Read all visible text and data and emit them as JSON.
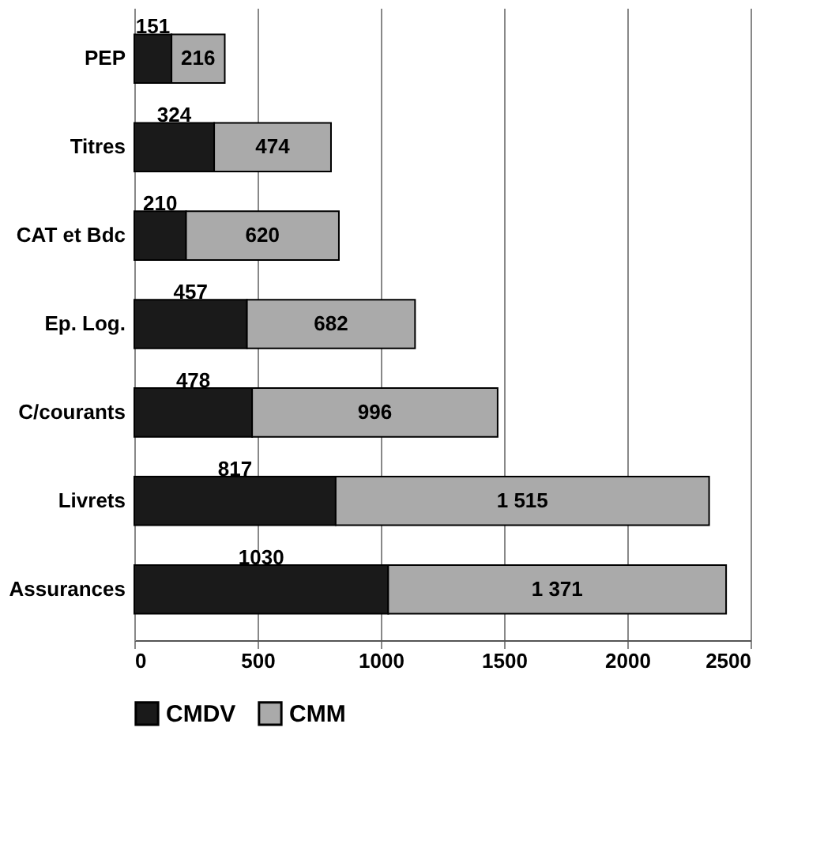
{
  "chart_data": {
    "type": "bar",
    "orientation": "horizontal",
    "stacked": true,
    "categories": [
      "PEP",
      "Titres",
      "CAT et Bdc",
      "Ep. Log.",
      "C/courants",
      "Livrets",
      "Assurances"
    ],
    "series": [
      {
        "name": "CMDV",
        "color": "#1a1a1a",
        "values": [
          151,
          324,
          210,
          457,
          478,
          817,
          1030
        ],
        "value_labels": [
          "151",
          "324",
          "210",
          "457",
          "478",
          "817",
          "1030"
        ]
      },
      {
        "name": "CMM",
        "color": "#aaaaaa",
        "values": [
          216,
          474,
          620,
          682,
          996,
          1515,
          1371
        ],
        "value_labels": [
          "216",
          "474",
          "620",
          "682",
          "996",
          "1 515",
          "1 371"
        ]
      }
    ],
    "xlim": [
      0,
      2500
    ],
    "xticks": [
      0,
      500,
      1000,
      1500,
      2000,
      2500
    ],
    "grid": "x",
    "legend": "bottom"
  }
}
